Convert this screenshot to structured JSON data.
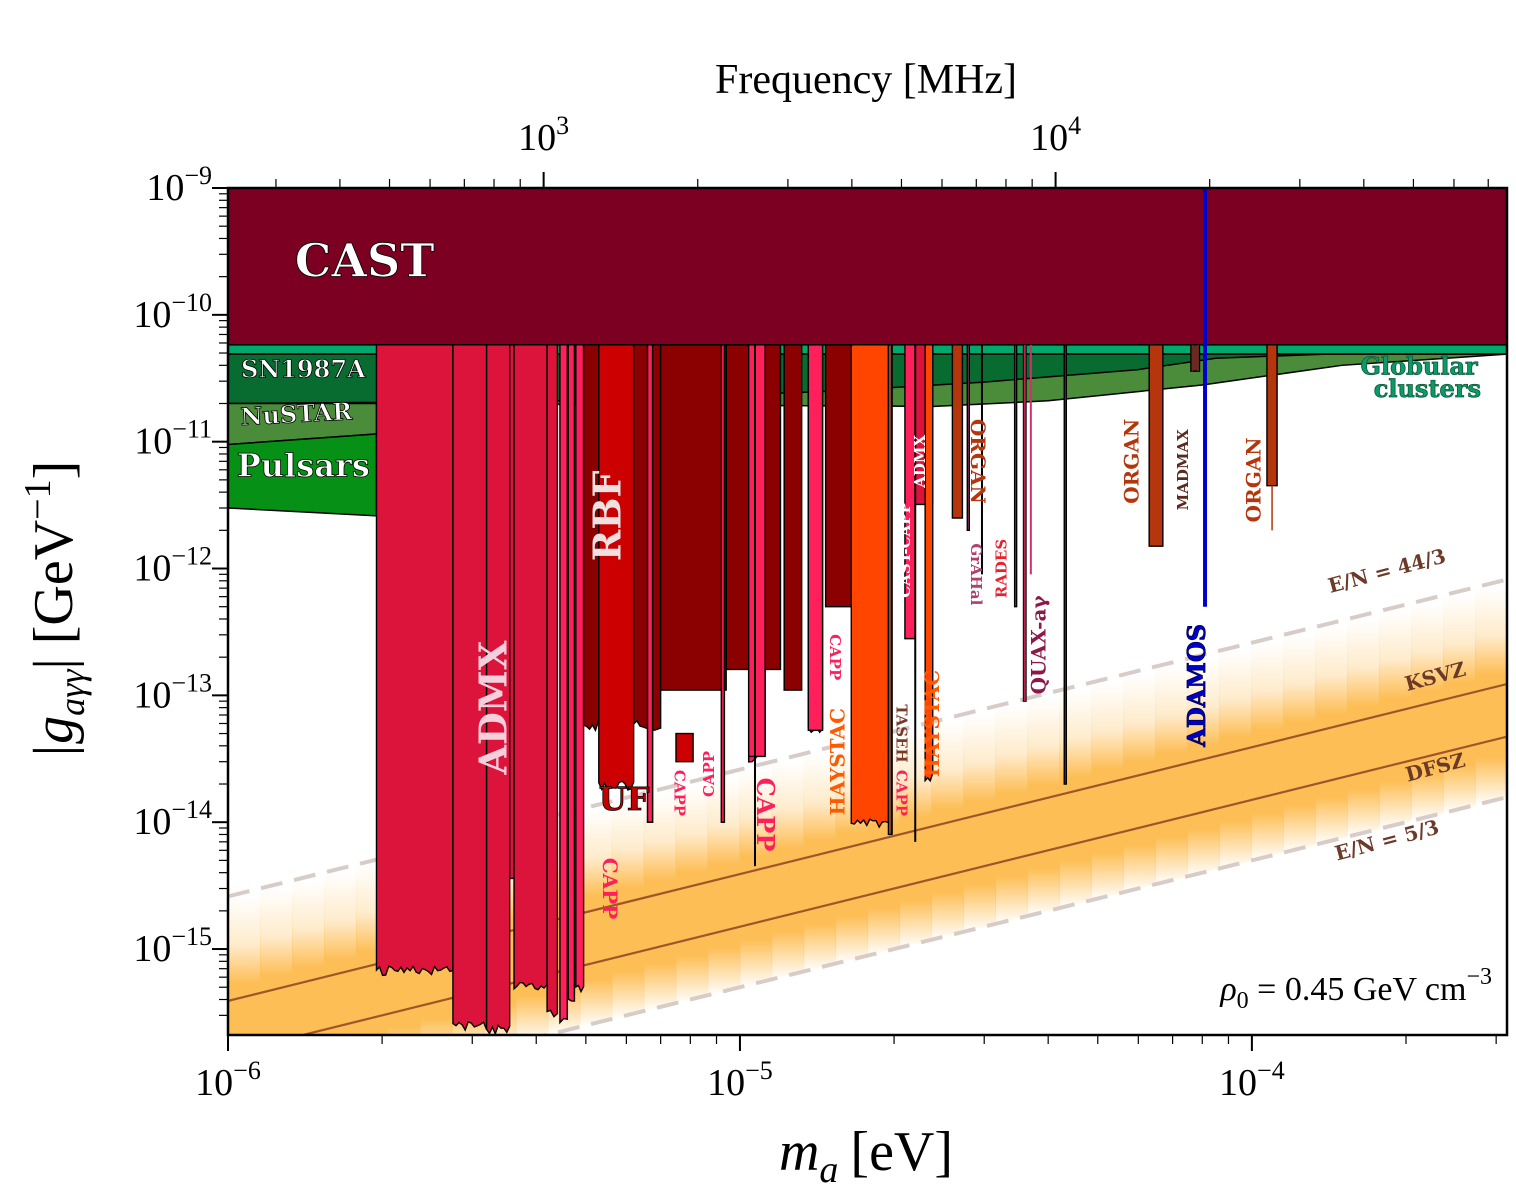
{
  "chart_data": {
    "type": "area",
    "title": "",
    "xlabel": "m_a [eV]",
    "xlabel_main": "m",
    "xlabel_sub": "a",
    "xlabel_unit": "[eV]",
    "ylabel": "|g_aγγ| [GeV^-1]",
    "ylabel_main": "|g",
    "ylabel_sub": "aγγ",
    "ylabel_unit": "| [GeV",
    "ylabel_exp": "−1",
    "ylabel_close": "]",
    "top_xlabel": "Frequency [MHz]",
    "xscale": "log",
    "yscale": "log",
    "xlim": [
      1e-06,
      0.000315
    ],
    "ylim": [
      2.1e-16,
      1e-09
    ],
    "grid": false,
    "x_ticks": [
      {
        "value": 1e-06,
        "base": "10",
        "exp": "−6"
      },
      {
        "value": 1e-05,
        "base": "10",
        "exp": "−5"
      },
      {
        "value": 0.0001,
        "base": "10",
        "exp": "−4"
      }
    ],
    "y_ticks": [
      {
        "value": 1e-09,
        "base": "10",
        "exp": "−9"
      },
      {
        "value": 1e-10,
        "base": "10",
        "exp": "−10"
      },
      {
        "value": 1e-11,
        "base": "10",
        "exp": "−11"
      },
      {
        "value": 1e-12,
        "base": "10",
        "exp": "−12"
      },
      {
        "value": 1e-13,
        "base": "10",
        "exp": "−13"
      },
      {
        "value": 1e-14,
        "base": "10",
        "exp": "−14"
      },
      {
        "value": 1e-15,
        "base": "10",
        "exp": "−15"
      }
    ],
    "top_ticks": [
      {
        "value_mhz": 1000,
        "base": "10",
        "exp": "3"
      },
      {
        "value_mhz": 10000,
        "base": "10",
        "exp": "4"
      }
    ],
    "annotation": {
      "text_main": "ρ",
      "text_sub": "0",
      "text_rest": " = 0.45 GeV cm",
      "text_exp": "−3",
      "position": "bottom-right"
    },
    "qcd_band": {
      "lines": [
        {
          "name": "E/N = 44/3",
          "style": "dashed",
          "g_at_1e-6": 2.6e-15,
          "slope": 1
        },
        {
          "name": "KSVZ",
          "style": "solid",
          "g_at_1e-6": 3.9e-16,
          "slope": 1
        },
        {
          "name": "DFSZ",
          "style": "solid",
          "g_at_1e-6": 1.5e-16,
          "slope": 1
        },
        {
          "name": "E/N = 5/3",
          "style": "dashed",
          "g_at_1e-6": 5e-17,
          "slope": 1
        }
      ],
      "colors": {
        "band": "#fdbe55",
        "line": "#a0552a",
        "dash": "#d8ccc8"
      }
    },
    "astro_bounds": [
      {
        "name": "CAST",
        "x_range": [
          1e-06,
          0.000315
        ],
        "g_low": 5.8e-11,
        "color": "#7b0022"
      },
      {
        "name": "Globular clusters",
        "x_range": [
          1e-06,
          0.000315
        ],
        "g_low": 4.9e-11,
        "color": "#00a86b"
      },
      {
        "name": "SN1987A",
        "points": [
          [
            1e-06,
            5.3e-11
          ],
          [
            1.95e-06,
            5.3e-11
          ],
          [
            3e-05,
            4.6e-11
          ],
          [
            7e-05,
            3.8e-11
          ],
          [
            8.5e-05,
            3.2e-11
          ],
          [
            0.000315,
            5e-11
          ]
        ],
        "g_low_points": [
          [
            1e-06,
            2e-11
          ],
          [
            1.95e-06,
            2e-11
          ],
          [
            2.4e-05,
            1.9e-11
          ],
          [
            4e-05,
            2.1e-11
          ],
          [
            8e-05,
            2.8e-11
          ],
          [
            0.00015,
            4e-11
          ],
          [
            0.000315,
            4.9e-11
          ]
        ],
        "color": "#086b30"
      },
      {
        "name": "NuSTAR",
        "x_range": [
          1e-06,
          1.95e-06
        ],
        "g_high": 2e-11,
        "g_low_start": 9.5e-12,
        "g_low_end": 1.15e-11,
        "color": "#4a8c3a"
      },
      {
        "name": "Pulsars",
        "x_range": [
          1e-06,
          1.95e-06
        ],
        "g_high_start": 9.5e-12,
        "g_high_end": 1.15e-11,
        "g_low_start": 3e-12,
        "g_low_end": 2.6e-12,
        "color": "#069016"
      }
    ],
    "haloscope_limits": [
      {
        "name": "ADMX",
        "x_range": [
          1.95e-06,
          2.75e-06
        ],
        "g_low": 7e-16,
        "color": "#dc143c"
      },
      {
        "name": "ADMX",
        "x_range": [
          2.75e-06,
          3.2e-06
        ],
        "g_low": 2.6e-16,
        "color": "#dc143c"
      },
      {
        "name": "ADMX",
        "x_range": [
          3.2e-06,
          3.55e-06
        ],
        "g_low": 2.4e-16,
        "color": "#dc143c"
      },
      {
        "name": "ADMX",
        "x_range": [
          3.55e-06,
          3.62e-06
        ],
        "g_low": 3.6e-15,
        "color": "#dc143c"
      },
      {
        "name": "ADMX",
        "x_range": [
          3.62e-06,
          4.2e-06
        ],
        "g_low": 5.2e-16,
        "color": "#dc143c"
      },
      {
        "name": "ADMX",
        "x_range": [
          4.2e-06,
          4.4e-06
        ],
        "g_low": 3.3e-16,
        "color": "#dc143c"
      },
      {
        "name": "CAPP",
        "x_range": [
          4.45e-06,
          4.6e-06
        ],
        "g_low": 2.9e-16,
        "color": "#ff1f5b"
      },
      {
        "name": "CAPP",
        "x_range": [
          4.62e-06,
          4.75e-06
        ],
        "g_low": 4e-16,
        "color": "#ff1f5b"
      },
      {
        "name": "CAPP",
        "x_range": [
          4.78e-06,
          4.95e-06
        ],
        "g_low": 5e-16,
        "color": "#ff1f5b"
      },
      {
        "name": "RBF",
        "x_range": [
          4.95e-06,
          7e-06
        ],
        "g_low": 6e-14,
        "color": "#8b0000"
      },
      {
        "name": "UF",
        "x_range": [
          5.3e-06,
          6.2e-06
        ],
        "g_low": 2e-14,
        "color": "#cc0000"
      },
      {
        "name": "CAPP",
        "x_range": [
          6.6e-06,
          6.75e-06
        ],
        "g_low": 1e-14,
        "color": "#ff1f5b"
      },
      {
        "name": "CAPP",
        "x_range": [
          9.2e-06,
          9.3e-06
        ],
        "g_low": 1e-14,
        "color": "#ff1f5b"
      },
      {
        "name": "CAPP",
        "x_range": [
          1.04e-05,
          1.12e-05
        ],
        "g_low": 3.3e-14,
        "color": "#ff1f5b"
      },
      {
        "name": "CAPP",
        "x_range": [
          1.36e-05,
          1.45e-05
        ],
        "g_low": 5.3e-14,
        "color": "#ff1f5b"
      },
      {
        "name": "HAYSTAC",
        "x_range": [
          1.65e-05,
          1.95e-05
        ],
        "g_low": 1e-14,
        "color": "#ff4500"
      },
      {
        "name": "TASEH",
        "x_range": [
          1.95e-05,
          1.98e-05
        ],
        "g_low": 8e-15,
        "color": "#a0522d"
      },
      {
        "name": "CAST-CAPP",
        "x_range": [
          2.1e-05,
          2.2e-05
        ],
        "g_low": 2.8e-13,
        "color": "#ff1f5b"
      },
      {
        "name": "ADMX",
        "x_range": [
          2.2e-05,
          2.38e-05
        ],
        "g_low": 3.2e-12,
        "color": "#dc143c"
      },
      {
        "name": "HAYSTAC",
        "x_range": [
          2.3e-05,
          2.38e-05
        ],
        "g_low": 2.3e-14,
        "color": "#ff4500"
      },
      {
        "name": "ORGAN",
        "x_range": [
          2.6e-05,
          2.72e-05
        ],
        "g_low": 2.5e-12,
        "color": "#b5360c"
      },
      {
        "name": "GrAHal",
        "x_range": [
          2.78e-05,
          2.8e-05
        ],
        "g_low": 2e-12,
        "color": "#b0406c"
      },
      {
        "name": "RADES",
        "x_range": [
          3.44e-05,
          3.46e-05
        ],
        "g_low": 5e-13,
        "color": "#e8232f"
      },
      {
        "name": "QUAX-aγ",
        "x_range": [
          3.58e-05,
          3.62e-05
        ],
        "g_low": 9e-14,
        "color": "#a0204c"
      },
      {
        "name": "QUAX-aγ",
        "x_range": [
          4.3e-05,
          4.34e-05
        ],
        "g_low": 2e-14,
        "color": "#a0204c"
      },
      {
        "name": "ORGAN",
        "x_range": [
          6.3e-05,
          6.7e-05
        ],
        "g_low": 1.5e-12,
        "color": "#b5360c"
      },
      {
        "name": "MADMAX",
        "x_range": [
          7.6e-05,
          7.9e-05
        ],
        "g_low": 3.6e-11,
        "color": "#6b2a20"
      },
      {
        "name": "ORGAN",
        "x_range": [
          0.000107,
          0.000112
        ],
        "g_low": 4.5e-12,
        "color": "#b5360c"
      }
    ],
    "projection": {
      "name": "ADAMOS",
      "x": 8.1e-05,
      "g_range": [
        5e-13,
        1e-09
      ],
      "color": "#0000cc"
    },
    "labels": [
      {
        "text": "CAST",
        "x": 1.35e-06,
        "g": 2e-10,
        "rotate": 0,
        "color": "#ffffff",
        "stroke": "#000000",
        "size": "xl"
      },
      {
        "text": "SN1987A",
        "x": 1.06e-06,
        "g": 3.2e-11,
        "rotate": 0,
        "color": "#ffffff",
        "stroke": "#000000",
        "size": "s"
      },
      {
        "text": "NuSTAR",
        "x": 1.06e-06,
        "g": 1.35e-11,
        "rotate": -3,
        "color": "#ffffff",
        "stroke": "#000000",
        "size": "s"
      },
      {
        "text": "Pulsars",
        "x": 1.04e-06,
        "g": 5.3e-12,
        "rotate": 0,
        "color": "#ffffff",
        "stroke": "#000000",
        "size": "m"
      },
      {
        "text": "Globular",
        "x": 0.000163,
        "g": 3.4e-11,
        "rotate": 0,
        "color": "#0b9a68",
        "stroke": "#0b5a38",
        "size": "s"
      },
      {
        "text": "clusters",
        "x": 0.000173,
        "g": 2.25e-11,
        "rotate": 0,
        "color": "#0b9a68",
        "stroke": "#0b5a38",
        "size": "s"
      },
      {
        "text": "ADMX",
        "x": 3.5e-06,
        "g": 8e-14,
        "rotate": -90,
        "color": "#f5d0dc",
        "size": "l"
      },
      {
        "text": "RBF",
        "x": 5.85e-06,
        "g": 2.6e-12,
        "rotate": -90,
        "color": "#f0e0e0",
        "size": "l"
      },
      {
        "text": "UF",
        "x": 5.3e-06,
        "g": 1.25e-14,
        "rotate": 0,
        "color": "#c40000",
        "stroke": "#000000",
        "size": "m"
      },
      {
        "text": "CAPP",
        "x": 5.4e-06,
        "g": 3e-15,
        "rotate": 90,
        "color": "#ff1f5b",
        "size": "xs"
      },
      {
        "text": "CAPP",
        "x": 7.45e-06,
        "g": 1.7e-14,
        "rotate": 90,
        "color": "#ff1f5b",
        "size": "xxs"
      },
      {
        "text": "CAPP",
        "x": 8.9e-06,
        "g": 2.4e-14,
        "rotate": -90,
        "color": "#ff1f5b",
        "size": "xxs"
      },
      {
        "text": "CAPP",
        "x": 1.08e-05,
        "g": 1.15e-14,
        "rotate": 90,
        "color": "#ff1f5b",
        "size": "s"
      },
      {
        "text": "CAPP",
        "x": 1.5e-05,
        "g": 2e-13,
        "rotate": 90,
        "color": "#ff1f5b",
        "size": "xxs"
      },
      {
        "text": "HAYSTAC",
        "x": 1.6e-05,
        "g": 3e-14,
        "rotate": -90,
        "color": "#ff5a00",
        "size": "xs"
      },
      {
        "text": "TASEH",
        "x": 2.02e-05,
        "g": 5e-14,
        "rotate": 90,
        "color": "#7a3a28",
        "size": "xxs"
      },
      {
        "text": "CAPP",
        "x": 2.02e-05,
        "g": 1.7e-14,
        "rotate": 90,
        "color": "#ff1f5b",
        "size": "xxs"
      },
      {
        "text": "CAST-CAPP",
        "x": 2.15e-05,
        "g": 1.4e-12,
        "rotate": -90,
        "color": "#ffffff",
        "size": "xxs"
      },
      {
        "text": "ADMX",
        "x": 2.3e-05,
        "g": 7e-12,
        "rotate": -90,
        "color": "#ffffff",
        "size": "xxs"
      },
      {
        "text": "HAYSTAC",
        "x": 2.45e-05,
        "g": 6e-14,
        "rotate": -90,
        "color": "#ff5a00",
        "size": "xs"
      },
      {
        "text": "ORGAN",
        "x": 2.83e-05,
        "g": 7e-12,
        "rotate": 90,
        "color": "#b5360c",
        "size": "xs"
      },
      {
        "text": "GrAHal",
        "x": 2.83e-05,
        "g": 9e-13,
        "rotate": 90,
        "color": "#b0406c",
        "size": "xxs"
      },
      {
        "text": "RADES",
        "x": 3.32e-05,
        "g": 1e-12,
        "rotate": -90,
        "color": "#e8232f",
        "size": "xxs"
      },
      {
        "text": "QUAX-aγ",
        "x": 3.95e-05,
        "g": 2.5e-13,
        "rotate": -90,
        "color": "#8b1a4a",
        "size": "xs"
      },
      {
        "text": "ORGAN",
        "x": 6e-05,
        "g": 7e-12,
        "rotate": -90,
        "color": "#b5360c",
        "size": "xs"
      },
      {
        "text": "MADMAX",
        "x": 7.5e-05,
        "g": 6e-12,
        "rotate": -90,
        "color": "#5a2a20",
        "size": "xxs"
      },
      {
        "text": "ORGAN",
        "x": 0.000104,
        "g": 5e-12,
        "rotate": -90,
        "color": "#b5360c",
        "size": "xs"
      },
      {
        "text": "ADAMOS",
        "x": 8.1e-05,
        "g": 1.2e-13,
        "rotate": -90,
        "color": "#0000cc",
        "stroke": "#000044",
        "size": "s"
      },
      {
        "text": "E/N = 44/3",
        "x": 0.000185,
        "g": 8.5e-13,
        "rotate": -15,
        "color": "#6b3a28",
        "size": "xs"
      },
      {
        "text": "KSVZ",
        "x": 0.00023,
        "g": 1.25e-13,
        "rotate": -15,
        "color": "#6b3a28",
        "size": "xs"
      },
      {
        "text": "DFSZ",
        "x": 0.00023,
        "g": 2.4e-14,
        "rotate": -15,
        "color": "#6b3a28",
        "size": "xs"
      },
      {
        "text": "E/N = 5/3",
        "x": 0.000185,
        "g": 6.4e-15,
        "rotate": -15,
        "color": "#6b3a28",
        "size": "xs"
      }
    ]
  }
}
